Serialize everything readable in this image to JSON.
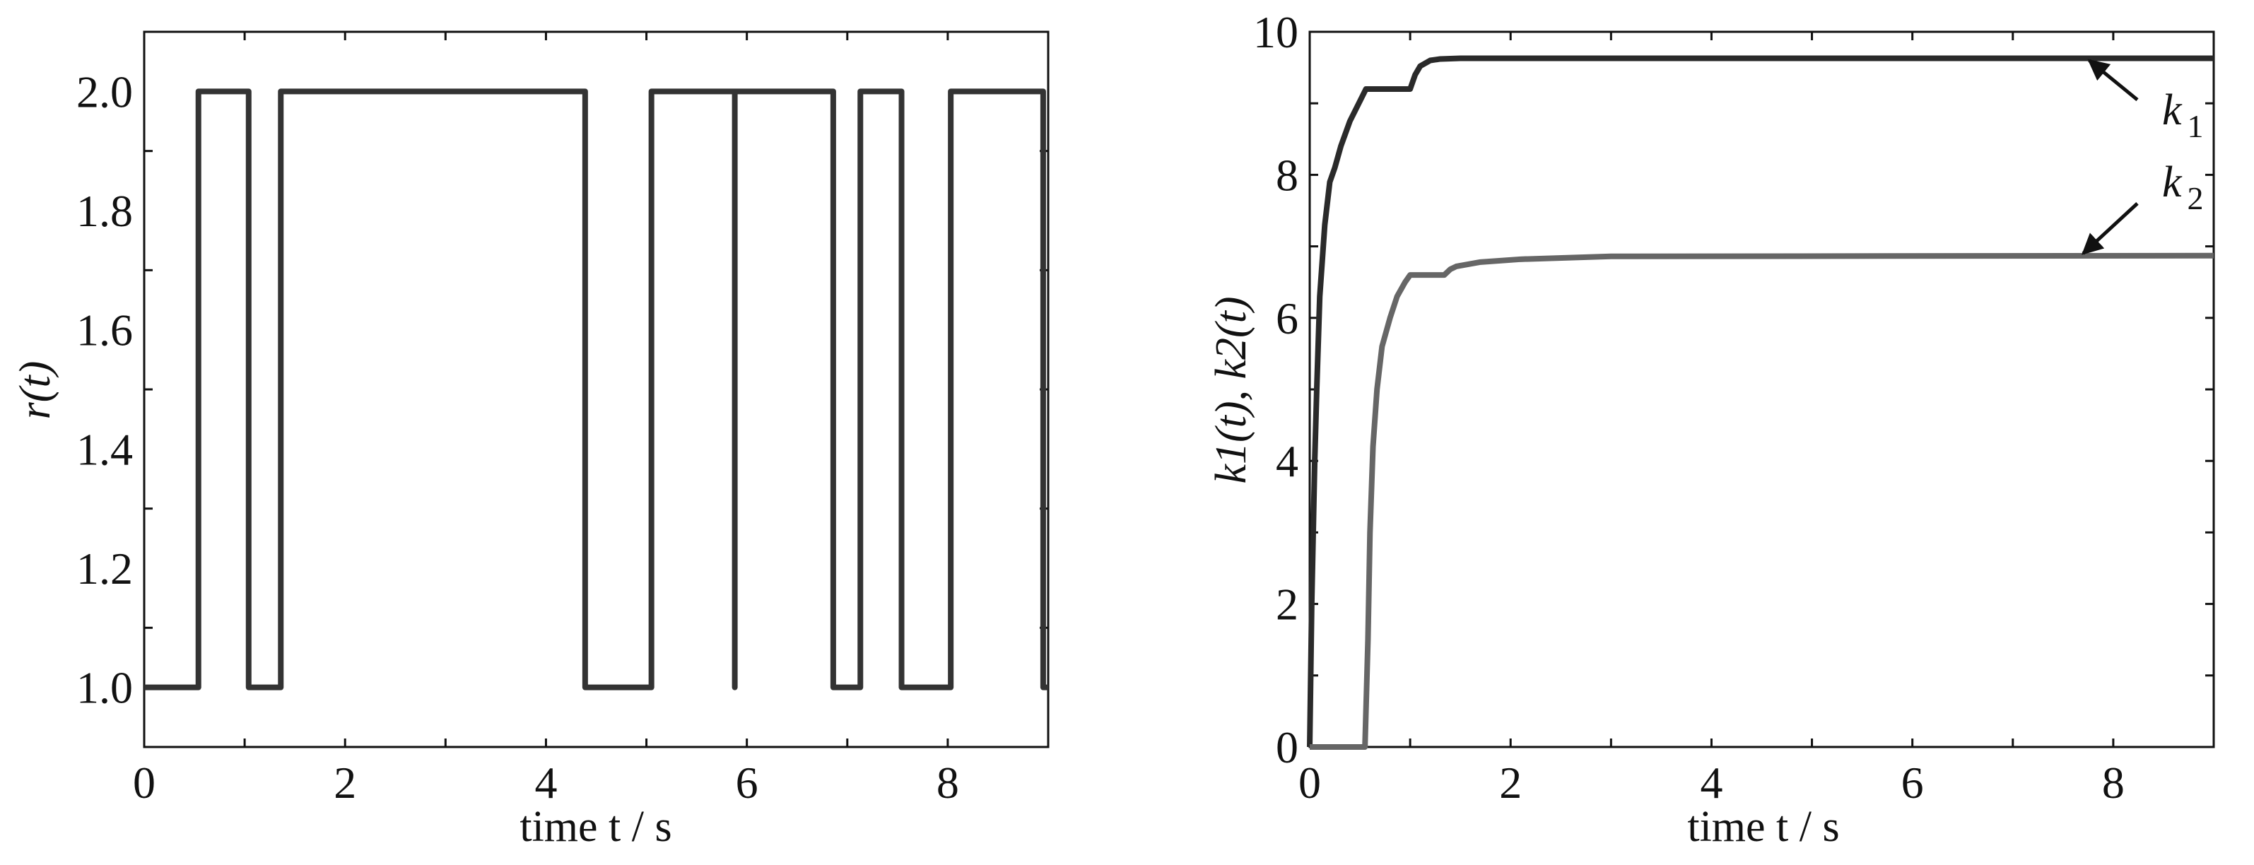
{
  "chart_data": [
    {
      "type": "line",
      "xlabel": "time t / s",
      "ylabel": "r(t)",
      "xlim": [
        0,
        9
      ],
      "ylim": [
        0.9,
        2.1
      ],
      "xticks": [
        "0",
        "2",
        "4",
        "6",
        "8"
      ],
      "yticks": [
        "1.0",
        "1.2",
        "1.4",
        "1.6",
        "1.8",
        "2.0"
      ],
      "grid": false,
      "color": "#333333",
      "series": [
        {
          "x": [
            0,
            0.54,
            0.54,
            1.04,
            1.04,
            1.36,
            1.36,
            4.39,
            4.39,
            5.05,
            5.05,
            5.88,
            5.88,
            5.88,
            6.86,
            6.86,
            7.13,
            7.13,
            7.54,
            7.54,
            8.03,
            8.03,
            8.95,
            8.95,
            9.0
          ],
          "y": [
            1,
            1,
            2,
            2,
            1,
            1,
            2,
            2,
            1,
            1,
            2,
            2,
            1,
            2,
            2,
            1,
            1,
            2,
            2,
            1,
            1,
            2,
            2,
            1,
            1
          ]
        }
      ]
    },
    {
      "type": "line",
      "xlabel": "time t / s",
      "ylabel": "k1(t), k2(t)",
      "xlim": [
        0,
        9
      ],
      "ylim": [
        0,
        10
      ],
      "xticks": [
        "0",
        "2",
        "4",
        "6",
        "8"
      ],
      "yticks": [
        "0",
        "2",
        "4",
        "6",
        "8",
        "10"
      ],
      "grid": false,
      "series": [
        {
          "name": "k1",
          "color": "#2a2a2a",
          "x": [
            0,
            0.02,
            0.05,
            0.07,
            0.1,
            0.15,
            0.2,
            0.25,
            0.31,
            0.4,
            0.56,
            1.0,
            1.05,
            1.1,
            1.2,
            1.3,
            1.5,
            9.0
          ],
          "y": [
            0,
            2.0,
            4.0,
            5.0,
            6.3,
            7.3,
            7.9,
            8.1,
            8.4,
            8.75,
            9.2,
            9.2,
            9.4,
            9.52,
            9.6,
            9.62,
            9.63,
            9.63
          ],
          "annotation": {
            "text": "k",
            "sub": "1",
            "arrow_head": [
              7.76,
              9.6
            ],
            "arrow_tail": [
              8.24,
              9.05
            ]
          }
        },
        {
          "name": "k2",
          "color": "#666666",
          "x": [
            0,
            0.55,
            0.58,
            0.6,
            0.63,
            0.67,
            0.72,
            0.8,
            0.87,
            0.95,
            1.0,
            1.34,
            1.4,
            1.46,
            1.7,
            2.1,
            3.0,
            9.0
          ],
          "y": [
            0,
            0,
            1.5,
            3.0,
            4.2,
            5.0,
            5.6,
            6.0,
            6.3,
            6.5,
            6.6,
            6.6,
            6.68,
            6.72,
            6.78,
            6.82,
            6.86,
            6.87
          ],
          "annotation": {
            "text": "k",
            "sub": "2",
            "arrow_head": [
              7.7,
              6.9
            ],
            "arrow_tail": [
              8.24,
              7.6
            ]
          }
        }
      ]
    }
  ]
}
